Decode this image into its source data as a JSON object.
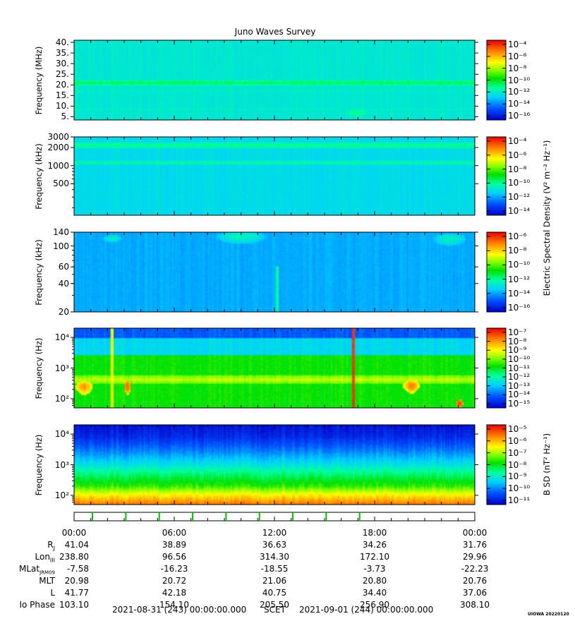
{
  "title": "Juno Waves Survey",
  "footer": {
    "start": "2021-08-31 (243) 00:00:00.000",
    "scet": "SCET",
    "end": "2021-09-01 (244) 00:00:00.000",
    "credit": "UIOWA 20220120"
  },
  "colorbar_titles": {
    "electric": "Electric Spectral Density (V² m⁻² Hz⁻¹)",
    "magnetic": "B SD (nT² Hz⁻¹)"
  },
  "ephemeris": {
    "time_labels": [
      "00:00",
      "06:00",
      "12:00",
      "18:00",
      "00:00"
    ],
    "rows": [
      {
        "label": "RJ",
        "values": [
          "41.04",
          "38.89",
          "36.63",
          "34.26",
          "31.76"
        ]
      },
      {
        "label": "LonIII",
        "values": [
          "238.80",
          "96.56",
          "314.30",
          "172.10",
          "29.96"
        ]
      },
      {
        "label": "MLatJRM09",
        "values": [
          "-7.58",
          "-16.23",
          "-18.55",
          "-3.73",
          "-22.23"
        ]
      },
      {
        "label": "MLT",
        "values": [
          "20.98",
          "20.72",
          "21.06",
          "20.80",
          "20.76"
        ]
      },
      {
        "label": "L",
        "values": [
          "41.77",
          "42.18",
          "40.75",
          "34.40",
          "37.06"
        ]
      },
      {
        "label": "Io Phase",
        "values": [
          "103.10",
          "154.10",
          "205.50",
          "256.90",
          "308.10"
        ]
      }
    ],
    "event_marks_hours": [
      1.1,
      3.1,
      5.1,
      7.1,
      9.1,
      11.1,
      13.1,
      15.1,
      17.1
    ]
  },
  "chart_data": [
    {
      "type": "heatmap",
      "ylabel": "Frequency (MHz)",
      "yscale": "linear",
      "ylim": [
        3.5,
        41
      ],
      "yticks": [
        "40.",
        "35.",
        "30.",
        "25.",
        "20.",
        "15.",
        "10.",
        "5."
      ],
      "ytick_values": [
        40,
        35,
        30,
        25,
        20,
        15,
        10,
        5
      ],
      "colorbar": {
        "ticks": [
          "10⁻⁴",
          "10⁻⁶",
          "10⁻⁸",
          "10⁻¹⁰",
          "10⁻¹²",
          "10⁻¹⁴",
          "10⁻¹⁶"
        ],
        "log_range": [
          -17,
          -4
        ]
      },
      "background_log": -12.6,
      "features": [
        {
          "kind": "band",
          "center": 21,
          "width": 1.2,
          "level": -11.2
        },
        {
          "kind": "band",
          "center": 17,
          "width": 0.8,
          "level": -12.2
        },
        {
          "kind": "band",
          "center": 8.5,
          "width": 0.6,
          "level": -12.3
        },
        {
          "kind": "blob",
          "t": 16.9,
          "f": 7,
          "dt": 0.9,
          "df": 2.5,
          "level": -11.7
        },
        {
          "kind": "blob",
          "t": 0.3,
          "f": 17,
          "dt": 0.4,
          "df": 1.5,
          "level": -12.0
        }
      ]
    },
    {
      "type": "heatmap",
      "ylabel": "Frequency (kHz)",
      "yscale": "log",
      "ylim": [
        150,
        3000
      ],
      "yticks": [
        "3000",
        "2000",
        "1000",
        "500"
      ],
      "ytick_values": [
        3000,
        2000,
        1000,
        500
      ],
      "colorbar": {
        "ticks": [
          "10⁻⁴",
          "10⁻⁶",
          "10⁻⁸",
          "10⁻¹⁰",
          "10⁻¹²",
          "10⁻¹⁴"
        ],
        "log_range": [
          -15,
          -3
        ]
      },
      "background_log": -11.3,
      "features": [
        {
          "kind": "band",
          "center": 2150,
          "width": 250,
          "level": -10.0
        },
        {
          "kind": "band",
          "center": 1120,
          "width": 90,
          "level": -10.3
        }
      ]
    },
    {
      "type": "heatmap",
      "ylabel": "Frequency (kHz)",
      "yscale": "log",
      "ylim": [
        20,
        140
      ],
      "yticks": [
        "140",
        "100",
        "60",
        "40",
        "20"
      ],
      "ytick_values": [
        140,
        100,
        60,
        40,
        20
      ],
      "colorbar": {
        "ticks": [
          "10⁻⁶",
          "10⁻⁸",
          "10⁻¹⁰",
          "10⁻¹²",
          "10⁻¹⁴",
          "10⁻¹⁶"
        ],
        "log_range": [
          -17,
          -5
        ]
      },
      "background_log": -14.1,
      "features": [
        {
          "kind": "blob",
          "t": 10.0,
          "f": 125,
          "dt": 1.5,
          "df": 20,
          "level": -12.6
        },
        {
          "kind": "blob",
          "t": 2.3,
          "f": 120,
          "dt": 0.6,
          "df": 12,
          "level": -12.8
        },
        {
          "kind": "blob",
          "t": 22.5,
          "f": 118,
          "dt": 1.0,
          "df": 18,
          "level": -12.7
        },
        {
          "kind": "line",
          "t": 12.2,
          "fmin": 20,
          "fmax": 60,
          "level": -12.3
        }
      ]
    },
    {
      "type": "heatmap",
      "ylabel": "Frequency (Hz)",
      "yscale": "log",
      "ylim": [
        50,
        20000
      ],
      "yticks": [
        "10⁴",
        "10³",
        "10²"
      ],
      "ytick_values": [
        10000,
        1000,
        100
      ],
      "colorbar": {
        "ticks": [
          "10⁻⁷",
          "10⁻⁸",
          "10⁻⁹",
          "10⁻¹⁰",
          "10⁻¹¹",
          "10⁻¹²",
          "10⁻¹³",
          "10⁻¹⁴",
          "10⁻¹⁵"
        ],
        "log_range": [
          -15,
          -7
        ]
      },
      "background_log": -10.8,
      "features": [
        {
          "kind": "upper",
          "fcut": 2500,
          "level": -12.6
        },
        {
          "kind": "upper",
          "fcut": 9000,
          "level": -13.8
        },
        {
          "kind": "band",
          "center": 420,
          "width": 140,
          "level": -9.6
        },
        {
          "kind": "blob",
          "t": 0.6,
          "f": 250,
          "dt": 0.5,
          "df": 120,
          "level": -8.3
        },
        {
          "kind": "blob",
          "t": 3.2,
          "f": 260,
          "dt": 0.2,
          "df": 130,
          "level": -7.8
        },
        {
          "kind": "blob",
          "t": 20.2,
          "f": 270,
          "dt": 0.5,
          "df": 120,
          "level": -8.2
        },
        {
          "kind": "blob",
          "t": 23.1,
          "f": 70,
          "dt": 0.2,
          "df": 25,
          "level": -7.5
        },
        {
          "kind": "line",
          "t": 16.7,
          "fmin": 50,
          "fmax": 20000,
          "level": -7.4
        },
        {
          "kind": "line",
          "t": 2.3,
          "fmin": 50,
          "fmax": 20000,
          "level": -9.3
        }
      ]
    },
    {
      "type": "heatmap",
      "ylabel": "Frequency (Hz)",
      "yscale": "log",
      "ylim": [
        50,
        20000
      ],
      "yticks": [
        "10⁴",
        "10³",
        "10²"
      ],
      "ytick_values": [
        10000,
        1000,
        100
      ],
      "colorbar": {
        "ticks": [
          "10⁻⁵",
          "10⁻⁶",
          "10⁻⁷",
          "10⁻⁸",
          "10⁻⁹",
          "10⁻¹⁰",
          "10⁻¹¹"
        ],
        "log_range": [
          -11,
          -4.5
        ]
      },
      "background_log": -10.6,
      "profile": [
        [
          50,
          -5.3
        ],
        [
          100,
          -6.2
        ],
        [
          200,
          -7.4
        ],
        [
          500,
          -8.2
        ],
        [
          1000,
          -8.9
        ],
        [
          3000,
          -9.8
        ],
        [
          8000,
          -10.5
        ],
        [
          20000,
          -10.8
        ]
      ]
    }
  ]
}
